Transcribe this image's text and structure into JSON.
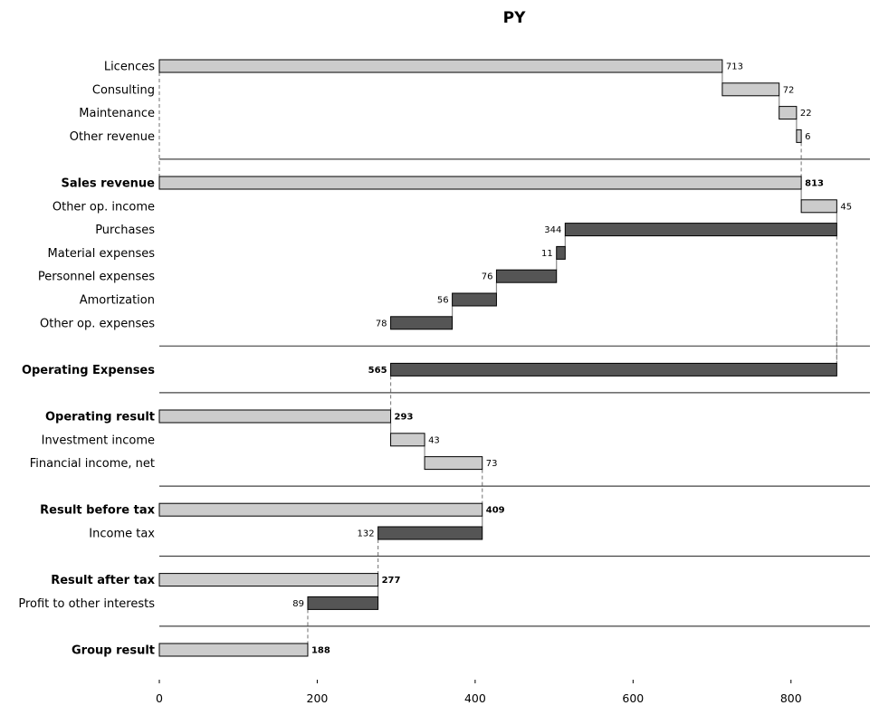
{
  "chart_data": {
    "type": "bar",
    "subtype": "waterfall-horizontal",
    "title": "PY",
    "xlim": [
      0,
      900
    ],
    "xticks": [
      0,
      200,
      400,
      600,
      800
    ],
    "grid": false,
    "colors": {
      "positive": "#cccccc",
      "negative": "#555555",
      "edge": "#000000",
      "connector": "#888888",
      "separator": "#444444"
    },
    "rows": [
      {
        "label": "Licences",
        "value": 713,
        "start": 0,
        "end": 713,
        "kind": "positive",
        "bold": false,
        "display": "713"
      },
      {
        "label": "Consulting",
        "value": 72,
        "start": 713,
        "end": 785,
        "kind": "positive",
        "bold": false,
        "display": "72"
      },
      {
        "label": "Maintenance",
        "value": 22,
        "start": 785,
        "end": 807,
        "kind": "positive",
        "bold": false,
        "display": "22"
      },
      {
        "label": "Other revenue",
        "value": 6,
        "start": 807,
        "end": 813,
        "kind": "positive",
        "bold": false,
        "display": "6"
      },
      {
        "label": "Sales revenue",
        "value": 813,
        "start": 0,
        "end": 813,
        "kind": "positive",
        "bold": true,
        "display": "813",
        "separator_before": true
      },
      {
        "label": "Other op. income",
        "value": 45,
        "start": 813,
        "end": 858,
        "kind": "positive",
        "bold": false,
        "display": "45"
      },
      {
        "label": "Purchases",
        "value": -344,
        "start": 514,
        "end": 858,
        "kind": "negative",
        "bold": false,
        "display": "344"
      },
      {
        "label": "Material expenses",
        "value": -11,
        "start": 503,
        "end": 514,
        "kind": "negative",
        "bold": false,
        "display": "11"
      },
      {
        "label": "Personnel expenses",
        "value": -76,
        "start": 427,
        "end": 503,
        "kind": "negative",
        "bold": false,
        "display": "76"
      },
      {
        "label": "Amortization",
        "value": -56,
        "start": 371,
        "end": 427,
        "kind": "negative",
        "bold": false,
        "display": "56"
      },
      {
        "label": "Other op. expenses",
        "value": -78,
        "start": 293,
        "end": 371,
        "kind": "negative",
        "bold": false,
        "display": "78"
      },
      {
        "label": "Operating Expenses",
        "value": -565,
        "start": 293,
        "end": 858,
        "kind": "negative",
        "bold": true,
        "display": "565",
        "separator_before": true
      },
      {
        "label": "Operating result",
        "value": 293,
        "start": 0,
        "end": 293,
        "kind": "positive",
        "bold": true,
        "display": "293",
        "separator_before": true
      },
      {
        "label": "Investment income",
        "value": 43,
        "start": 293,
        "end": 336,
        "kind": "positive",
        "bold": false,
        "display": "43"
      },
      {
        "label": "Financial income, net",
        "value": 73,
        "start": 336,
        "end": 409,
        "kind": "positive",
        "bold": false,
        "display": "73"
      },
      {
        "label": "Result before tax",
        "value": 409,
        "start": 0,
        "end": 409,
        "kind": "positive",
        "bold": true,
        "display": "409",
        "separator_before": true
      },
      {
        "label": "Income tax",
        "value": -132,
        "start": 277,
        "end": 409,
        "kind": "negative",
        "bold": false,
        "display": "132"
      },
      {
        "label": "Result after tax",
        "value": 277,
        "start": 0,
        "end": 277,
        "kind": "positive",
        "bold": true,
        "display": "277",
        "separator_before": true
      },
      {
        "label": "Profit to other interests",
        "value": -89,
        "start": 188,
        "end": 277,
        "kind": "negative",
        "bold": false,
        "display": "89"
      },
      {
        "label": "Group result",
        "value": 188,
        "start": 0,
        "end": 188,
        "kind": "positive",
        "bold": true,
        "display": "188",
        "separator_before": true
      }
    ]
  }
}
